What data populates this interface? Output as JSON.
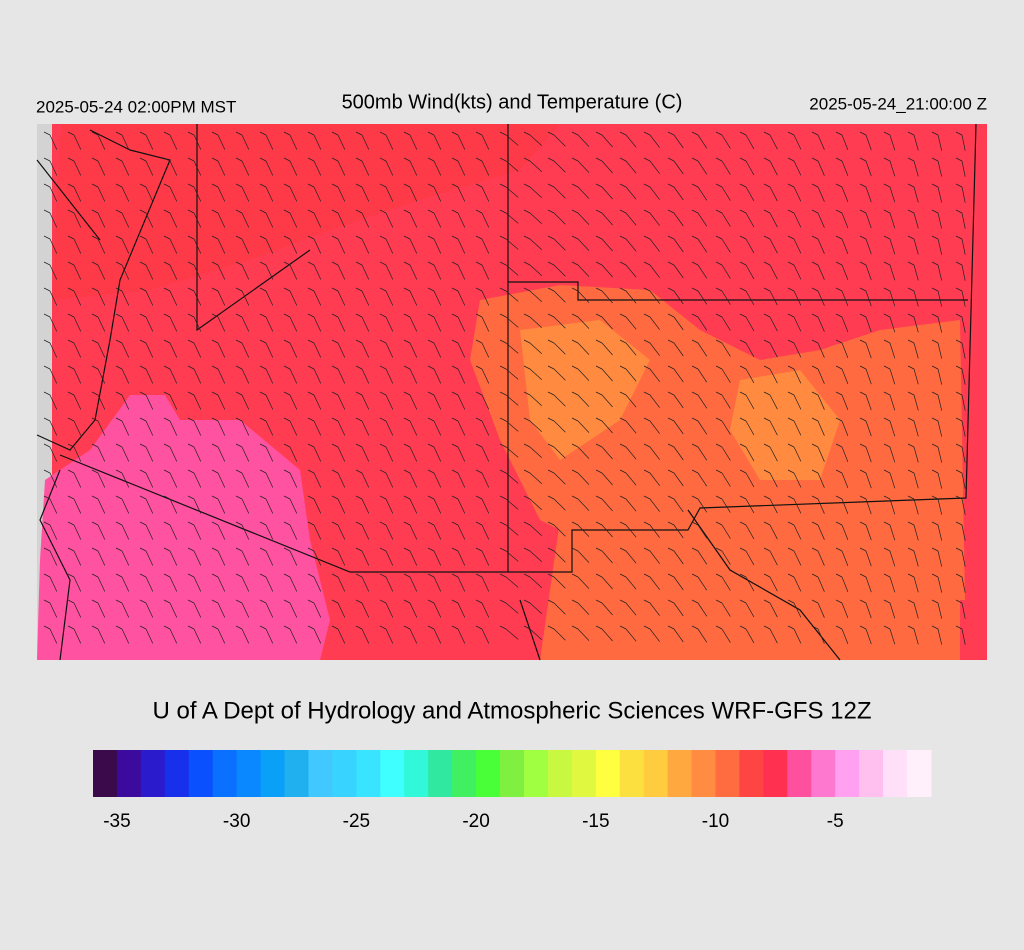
{
  "header": {
    "title": "500mb Wind(kts) and Temperature (C)",
    "valid_local": "2025-05-24 02:00PM MST",
    "valid_utc": "2025-05-24_21:00:00 Z"
  },
  "credit": "U of A Dept of Hydrology and Atmospheric Sciences WRF-GFS 12Z",
  "colorbar": {
    "lim": [
      -36,
      -1
    ],
    "ticks": [
      -35,
      -30,
      -25,
      -20,
      -15,
      -10,
      -5
    ],
    "colors": [
      "#3a0a4a",
      "#3c0a9c",
      "#2a1ccc",
      "#1830ec",
      "#0a50ff",
      "#0a70ff",
      "#0a88ff",
      "#0aa0f8",
      "#20b0f0",
      "#40c8ff",
      "#38d4ff",
      "#38e4ff",
      "#40ffff",
      "#30f8d8",
      "#30e8a0",
      "#40f060",
      "#48ff38",
      "#80f040",
      "#a0ff40",
      "#c8f840",
      "#e0f840",
      "#ffff40",
      "#fce040",
      "#ffcc40",
      "#ffa840",
      "#ff8c40",
      "#ff6c40",
      "#ff4444",
      "#ff3050",
      "#ff50a0",
      "#ff78d0",
      "#ffa0f0",
      "#ffc0f0",
      "#ffe0f8",
      "#fff0fc"
    ]
  }
}
